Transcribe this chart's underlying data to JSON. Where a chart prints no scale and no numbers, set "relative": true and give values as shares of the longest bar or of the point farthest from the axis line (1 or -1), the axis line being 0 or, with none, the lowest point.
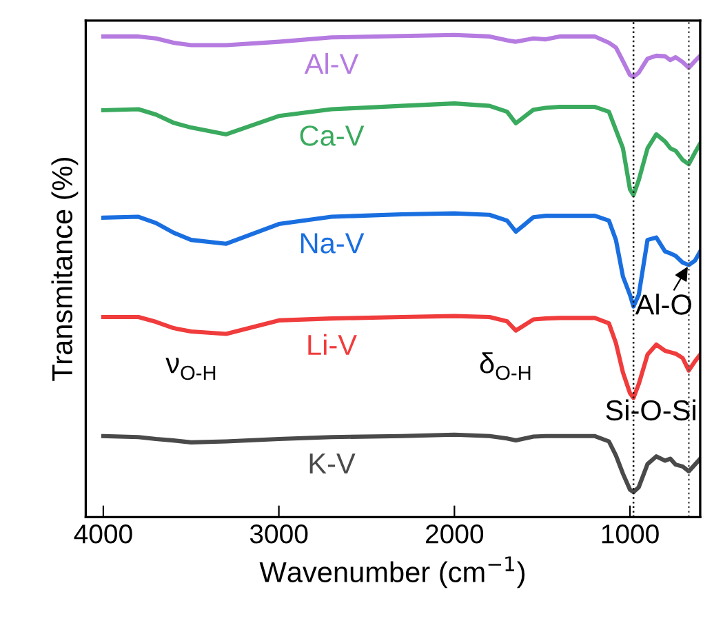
{
  "chart_data": {
    "type": "line",
    "relative": true,
    "xlabel": "Wavenumber (cm$^{−1}$)",
    "ylabel": "Transmitance (%)",
    "x": [
      4000,
      3800,
      3700,
      3600,
      3500,
      3300,
      3000,
      2700,
      2300,
      2000,
      1800,
      1700,
      1650,
      1550,
      1480,
      1400,
      1200,
      1120,
      1080,
      1040,
      1000,
      980,
      950,
      900,
      850,
      800,
      770,
      740,
      700,
      665,
      630,
      600
    ],
    "xlim": [
      4100,
      600
    ],
    "xticks": [
      4000,
      3000,
      2000,
      1000
    ],
    "tick_labels": "x",
    "grid": false,
    "legend": false,
    "marker": "none",
    "line_style": "solid",
    "series": [
      {
        "name": "Al-V",
        "color": "#b57be0",
        "values": [
          0.997,
          0.997,
          0.993,
          0.984,
          0.979,
          0.979,
          0.986,
          0.995,
          0.998,
          1.0,
          0.997,
          0.989,
          0.986,
          0.993,
          0.991,
          0.997,
          0.997,
          0.984,
          0.974,
          0.946,
          0.917,
          0.913,
          0.922,
          0.951,
          0.957,
          0.956,
          0.948,
          0.954,
          0.944,
          0.932,
          0.946,
          0.957
        ]
      },
      {
        "name": "Ca-V",
        "color": "#3aaa5e",
        "values": [
          0.844,
          0.846,
          0.835,
          0.818,
          0.808,
          0.794,
          0.832,
          0.846,
          0.853,
          0.858,
          0.853,
          0.841,
          0.817,
          0.845,
          0.849,
          0.851,
          0.851,
          0.841,
          0.803,
          0.765,
          0.68,
          0.668,
          0.699,
          0.765,
          0.794,
          0.779,
          0.765,
          0.76,
          0.741,
          0.732,
          0.756,
          0.775
        ]
      },
      {
        "name": "Na-V",
        "color": "#1a6fe0",
        "values": [
          0.621,
          0.623,
          0.61,
          0.59,
          0.575,
          0.567,
          0.608,
          0.623,
          0.628,
          0.63,
          0.627,
          0.615,
          0.592,
          0.622,
          0.625,
          0.625,
          0.625,
          0.615,
          0.575,
          0.499,
          0.461,
          0.437,
          0.461,
          0.575,
          0.58,
          0.551,
          0.547,
          0.542,
          0.528,
          0.523,
          0.532,
          0.551
        ]
      },
      {
        "name": "Li-V",
        "color": "#f03c3c",
        "values": [
          0.415,
          0.415,
          0.405,
          0.392,
          0.385,
          0.38,
          0.408,
          0.412,
          0.415,
          0.417,
          0.415,
          0.406,
          0.387,
          0.41,
          0.412,
          0.413,
          0.413,
          0.402,
          0.361,
          0.3,
          0.257,
          0.247,
          0.276,
          0.337,
          0.358,
          0.345,
          0.342,
          0.339,
          0.33,
          0.304,
          0.323,
          0.337
        ]
      },
      {
        "name": "K-V",
        "color": "#4a4a4a",
        "values": [
          0.168,
          0.166,
          0.162,
          0.159,
          0.155,
          0.157,
          0.162,
          0.166,
          0.168,
          0.171,
          0.168,
          0.163,
          0.159,
          0.167,
          0.168,
          0.168,
          0.168,
          0.157,
          0.128,
          0.09,
          0.057,
          0.052,
          0.062,
          0.11,
          0.126,
          0.117,
          0.121,
          0.109,
          0.105,
          0.095,
          0.109,
          0.121
        ]
      }
    ],
    "ref_lines": [
      {
        "axis": "x",
        "value": 980,
        "color": "#000000",
        "line_style": "dotted"
      },
      {
        "axis": "x",
        "value": 665,
        "color": "#555555",
        "line_style": "dotted"
      }
    ],
    "annotations": [
      "ν$_{O-H}$",
      "δ$_{O-H}$",
      "Si-O-Si",
      {
        "text": "Al-O",
        "x": 665,
        "y": 0.523
      }
    ]
  }
}
